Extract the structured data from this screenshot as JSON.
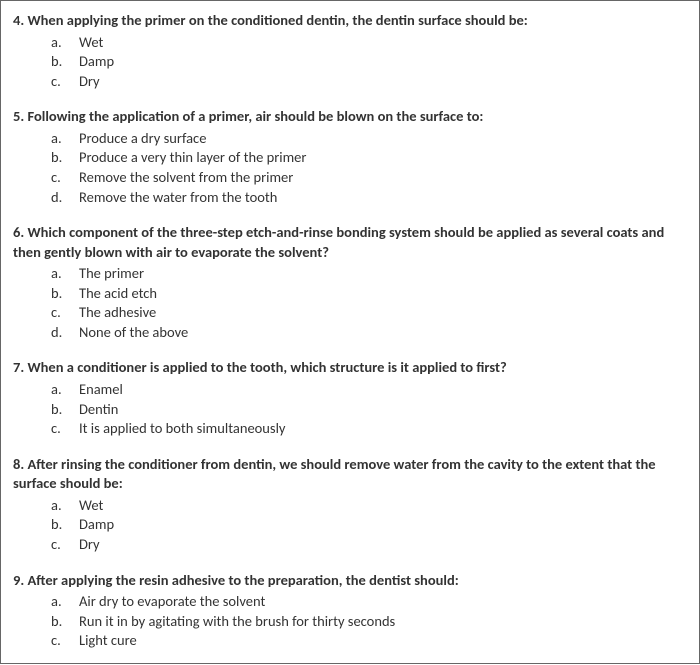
{
  "questions": [
    {
      "stem": "4. When applying the primer on the conditioned dentin, the dentin surface should be:",
      "options": [
        {
          "letter": "a.",
          "text": "Wet"
        },
        {
          "letter": "b.",
          "text": "Damp"
        },
        {
          "letter": "c.",
          "text": "Dry"
        }
      ]
    },
    {
      "stem": "5. Following the application of a primer, air should be blown on the surface to:",
      "options": [
        {
          "letter": "a.",
          "text": "Produce a dry surface"
        },
        {
          "letter": "b.",
          "text": "Produce a very thin layer of the primer"
        },
        {
          "letter": "c.",
          "text": "Remove the solvent from the primer"
        },
        {
          "letter": "d.",
          "text": "Remove the water from the tooth"
        }
      ]
    },
    {
      "stem": "6. Which component of the three-step etch-and-rinse bonding system should be applied as several coats and then gently blown with air to evaporate the solvent?",
      "options": [
        {
          "letter": "a.",
          "text": "The primer"
        },
        {
          "letter": "b.",
          "text": "The acid etch"
        },
        {
          "letter": "c.",
          "text": "The adhesive"
        },
        {
          "letter": "d.",
          "text": "None of the above"
        }
      ]
    },
    {
      "stem": "7. When a conditioner is applied to the tooth, which structure is it applied to first?",
      "options": [
        {
          "letter": "a.",
          "text": "Enamel"
        },
        {
          "letter": "b.",
          "text": "Dentin"
        },
        {
          "letter": "c.",
          "text": "It is applied to both simultaneously"
        }
      ]
    },
    {
      "stem": "8. After rinsing the conditioner from dentin, we should remove water from the cavity to the extent that the surface should be:",
      "options": [
        {
          "letter": "a.",
          "text": "Wet"
        },
        {
          "letter": "b.",
          "text": "Damp"
        },
        {
          "letter": "c.",
          "text": "Dry"
        }
      ]
    },
    {
      "stem": "9. After applying the resin adhesive to the preparation, the dentist should:",
      "options": [
        {
          "letter": "a.",
          "text": "Air dry to evaporate the solvent"
        },
        {
          "letter": "b.",
          "text": "Run it in by agitating with the brush for thirty seconds"
        },
        {
          "letter": "c.",
          "text": "Light cure"
        }
      ]
    }
  ]
}
